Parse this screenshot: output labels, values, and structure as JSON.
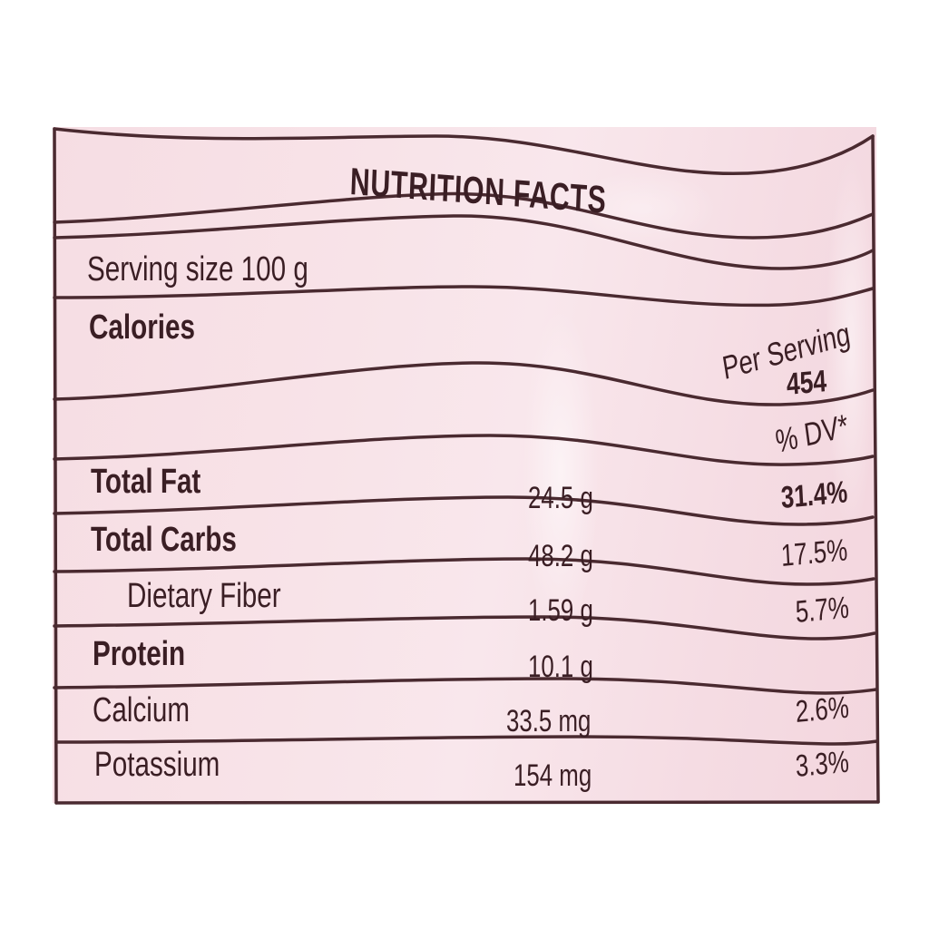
{
  "title": "NUTRITION FACTS",
  "serving_size": "Serving size 100 g",
  "calories_label": "Calories",
  "per_serving_label": "Per Serving",
  "calories_value": "454",
  "dv_header": "% DV*",
  "rows": [
    {
      "label": "Total Fat",
      "amount": "24.5 g",
      "dv": "31.4%",
      "bold": true
    },
    {
      "label": "Total Carbs",
      "amount": "48.2 g",
      "dv": "17.5%",
      "bold": true
    },
    {
      "label": "Dietary Fiber",
      "amount": "1.59 g",
      "dv": "5.7%",
      "bold": false
    },
    {
      "label": "Protein",
      "amount": "10.1 g",
      "dv": "",
      "bold": true
    },
    {
      "label": "Calcium",
      "amount": "33.5 mg",
      "dv": "2.6%",
      "bold": false
    },
    {
      "label": "Potassium",
      "amount": "154 mg",
      "dv": "3.3%",
      "bold": false
    }
  ],
  "colors": {
    "label_background": "#f7e0e6",
    "ink": "#3a1e24",
    "rule": "#4a2a30"
  }
}
